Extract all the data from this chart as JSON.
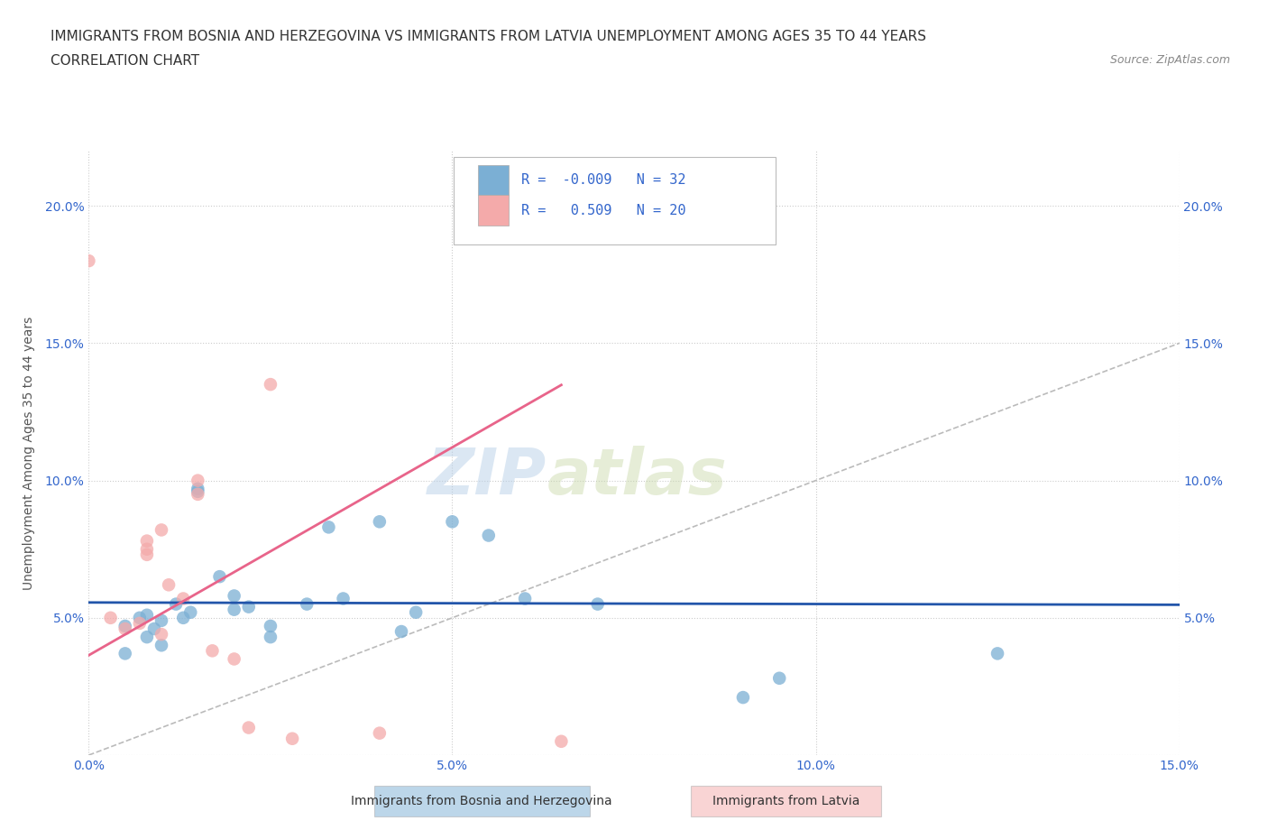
{
  "title_line1": "IMMIGRANTS FROM BOSNIA AND HERZEGOVINA VS IMMIGRANTS FROM LATVIA UNEMPLOYMENT AMONG AGES 35 TO 44 YEARS",
  "title_line2": "CORRELATION CHART",
  "source": "Source: ZipAtlas.com",
  "ylabel": "Unemployment Among Ages 35 to 44 years",
  "xlim": [
    0.0,
    0.15
  ],
  "ylim": [
    0.0,
    0.22
  ],
  "xticks": [
    0.0,
    0.05,
    0.1,
    0.15
  ],
  "yticks": [
    0.0,
    0.05,
    0.1,
    0.15,
    0.2
  ],
  "xticklabels": [
    "0.0%",
    "5.0%",
    "10.0%",
    "15.0%"
  ],
  "yticklabels": [
    "",
    "5.0%",
    "10.0%",
    "15.0%",
    "20.0%"
  ],
  "legend_blue_label": "Immigrants from Bosnia and Herzegovina",
  "legend_pink_label": "Immigrants from Latvia",
  "R_blue": -0.009,
  "N_blue": 32,
  "R_pink": 0.509,
  "N_pink": 20,
  "color_blue": "#7BAFD4",
  "color_pink": "#F4AAAA",
  "color_blue_line": "#2255AA",
  "color_pink_line": "#E8648A",
  "color_diag_line": "#BBBBBB",
  "watermark_zip": "ZIP",
  "watermark_atlas": "atlas",
  "blue_x": [
    0.005,
    0.005,
    0.007,
    0.008,
    0.008,
    0.009,
    0.01,
    0.01,
    0.012,
    0.013,
    0.014,
    0.015,
    0.015,
    0.018,
    0.02,
    0.02,
    0.022,
    0.025,
    0.025,
    0.03,
    0.033,
    0.035,
    0.04,
    0.043,
    0.045,
    0.05,
    0.055,
    0.06,
    0.07,
    0.09,
    0.095,
    0.125
  ],
  "blue_y": [
    0.047,
    0.037,
    0.05,
    0.043,
    0.051,
    0.046,
    0.049,
    0.04,
    0.055,
    0.05,
    0.052,
    0.097,
    0.096,
    0.065,
    0.053,
    0.058,
    0.054,
    0.047,
    0.043,
    0.055,
    0.083,
    0.057,
    0.085,
    0.045,
    0.052,
    0.085,
    0.08,
    0.057,
    0.055,
    0.021,
    0.028,
    0.037
  ],
  "pink_x": [
    0.0,
    0.003,
    0.005,
    0.007,
    0.008,
    0.008,
    0.008,
    0.01,
    0.01,
    0.011,
    0.013,
    0.015,
    0.015,
    0.017,
    0.02,
    0.022,
    0.025,
    0.028,
    0.04,
    0.065
  ],
  "pink_y": [
    0.18,
    0.05,
    0.046,
    0.048,
    0.075,
    0.078,
    0.073,
    0.082,
    0.044,
    0.062,
    0.057,
    0.095,
    0.1,
    0.038,
    0.035,
    0.01,
    0.135,
    0.006,
    0.008,
    0.005
  ]
}
